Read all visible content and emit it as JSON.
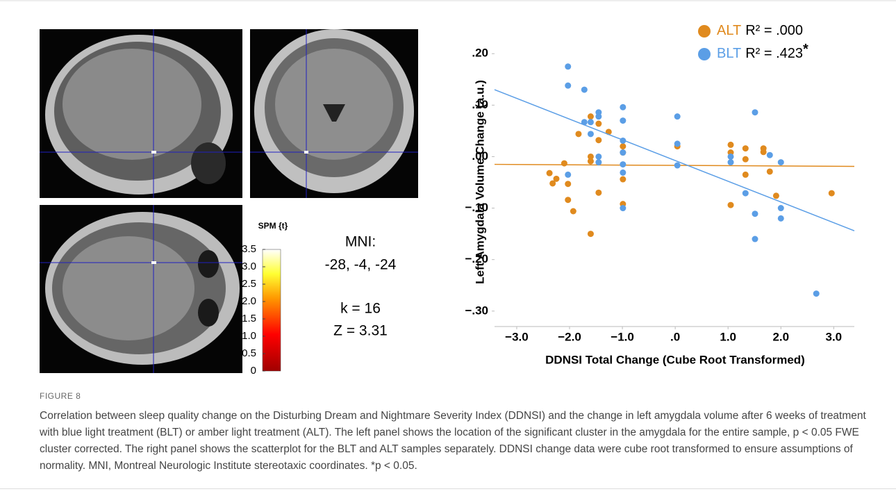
{
  "chart_data": {
    "type": "scatter",
    "ylabel": "Left Amygdala Volume Change (a.u.)",
    "xlabel": "DDNSI Total Change (Cube Root Transformed)",
    "xlim": [
      -3.42,
      3.39
    ],
    "ylim": [
      -0.33,
      0.23
    ],
    "xticks": [
      {
        "value": -3,
        "label": "−3.0"
      },
      {
        "value": -2,
        "label": "−2.0"
      },
      {
        "value": -1,
        "label": "−1.0"
      },
      {
        "value": 0,
        "label": ".0"
      },
      {
        "value": 1,
        "label": "1.0"
      },
      {
        "value": 2,
        "label": "2.0"
      },
      {
        "value": 3,
        "label": "3.0"
      }
    ],
    "yticks": [
      {
        "value": 0.2,
        "label": ".20"
      },
      {
        "value": 0.1,
        "label": ".10"
      },
      {
        "value": 0,
        "label": ".00"
      },
      {
        "value": -0.1,
        "label": "−.10"
      },
      {
        "value": -0.2,
        "label": "−.20"
      },
      {
        "value": -0.3,
        "label": "−.30"
      }
    ],
    "series": [
      {
        "name": "ALT",
        "stat": "R² = .000",
        "color": "#e08a1e",
        "x": [
          -2.38,
          -2.32,
          -2.25,
          -2.1,
          -2.03,
          -2.03,
          -1.93,
          -1.83,
          -1.6,
          -1.6,
          -1.6,
          -1.6,
          -1.45,
          -1.45,
          -1.45,
          -1.26,
          -0.99,
          -0.99,
          -0.99,
          -0.99,
          0.04,
          1.05,
          1.05,
          1.05,
          1.33,
          1.33,
          1.33,
          1.67,
          1.67,
          1.79,
          1.91,
          2.96
        ],
        "y": [
          -0.032,
          -0.052,
          -0.043,
          -0.013,
          -0.053,
          -0.084,
          -0.106,
          0.044,
          0.078,
          0.0,
          -0.009,
          -0.15,
          0.064,
          0.032,
          -0.07,
          0.048,
          0.02,
          0.008,
          -0.044,
          -0.092,
          0.02,
          0.023,
          0.008,
          -0.094,
          0.016,
          -0.005,
          -0.035,
          0.016,
          0.009,
          -0.029,
          -0.076,
          -0.071
        ],
        "fit": {
          "x": [
            -3.42,
            3.39
          ],
          "y": [
            -0.015,
            -0.019
          ]
        }
      },
      {
        "name": "BLT",
        "stat": "R² = .423",
        "significance": "*",
        "color": "#5b9ee6",
        "x": [
          -2.03,
          -2.03,
          -2.03,
          -1.72,
          -1.72,
          -1.6,
          -1.6,
          -1.45,
          -1.45,
          -1.45,
          -1.45,
          -0.99,
          -0.99,
          -0.99,
          -0.99,
          -0.99,
          -0.99,
          -0.99,
          0.04,
          0.04,
          0.04,
          1.05,
          1.05,
          1.33,
          1.51,
          1.51,
          1.51,
          1.79,
          2.0,
          2.0,
          2.0,
          2.67
        ],
        "y": [
          0.175,
          0.138,
          -0.035,
          0.13,
          0.067,
          0.067,
          0.044,
          0.086,
          0.078,
          0.0,
          -0.011,
          0.096,
          0.07,
          0.031,
          0.008,
          -0.015,
          -0.031,
          -0.1,
          0.078,
          0.025,
          -0.017,
          0.0,
          -0.011,
          -0.071,
          0.086,
          -0.111,
          -0.16,
          0.003,
          -0.011,
          -0.1,
          -0.12,
          -0.266
        ],
        "fit": {
          "x": [
            -3.42,
            3.39
          ],
          "y": [
            0.13,
            -0.144
          ]
        }
      }
    ],
    "legend": "upper right"
  },
  "figure": {
    "colorbar": {
      "title": "SPM {t}",
      "range": [
        0,
        3.5
      ],
      "ticks": [
        {
          "value": 3.5,
          "label": "3.5"
        },
        {
          "value": 3,
          "label": "3.0"
        },
        {
          "value": 2.5,
          "label": "2.5"
        },
        {
          "value": 2,
          "label": "2.0"
        },
        {
          "value": 1.5,
          "label": "1.5"
        },
        {
          "value": 1,
          "label": "1.0"
        },
        {
          "value": 0.5,
          "label": "0.5"
        },
        0
      ]
    },
    "coordinates": [
      "MNI:",
      "-28, -4, -24",
      "k = 16",
      "Z = 3.31"
    ],
    "label": "FIGURE 8",
    "caption": "Correlation between sleep quality change on the Disturbing Dream and Nightmare Severity Index (DDNSI) and the change in left amygdala volume after 6 weeks of treatment with blue light treatment (BLT) or amber light treatment (ALT). The left panel shows the location of the significant cluster in the amygdala for the entire sample, p < 0.05 FWE cluster corrected. The right panel shows the scatterplot for the BLT and ALT samples separately. DDNSI change data were cube root transformed to ensure assumptions of normality. MNI, Montreal Neurologic Institute stereotaxic coordinates. *p < 0.05."
  }
}
